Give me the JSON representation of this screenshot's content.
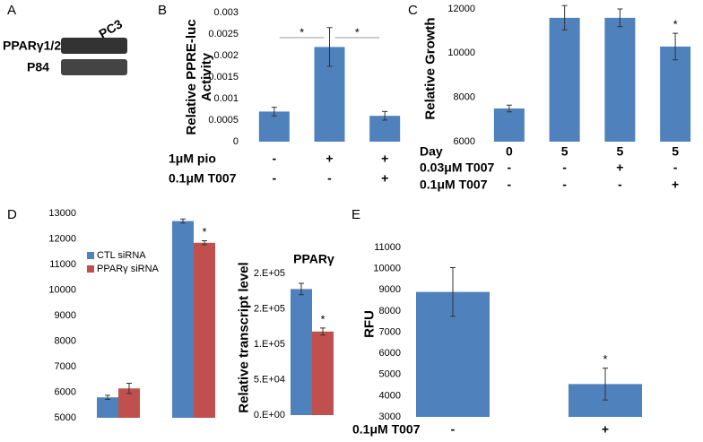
{
  "panel_a": {
    "letter": "A",
    "lane": "PC3",
    "rows": [
      "PPARγ1/2",
      "P84"
    ]
  },
  "chart_data": [
    {
      "type": "bar",
      "panel": "B",
      "ylabel": "Relative PPRE-luc Activity",
      "values": [
        0.0007,
        0.0022,
        0.0006
      ],
      "errors": [
        0.0001,
        0.00045,
        0.0001
      ],
      "color": "#4f81bd",
      "ylim": [
        0,
        0.003
      ],
      "yticks": [
        0,
        0.0005,
        0.001,
        0.0015,
        0.002,
        0.0025,
        0.003
      ],
      "conditions": [
        {
          "label": "1μM pio",
          "values": [
            "-",
            "+",
            "+"
          ]
        },
        {
          "label": "0.1μM T007",
          "values": [
            "-",
            "-",
            "+"
          ]
        }
      ],
      "significance": [
        {
          "from": 0,
          "to": 1,
          "label": "*"
        },
        {
          "from": 1,
          "to": 2,
          "label": "*"
        }
      ]
    },
    {
      "type": "bar",
      "panel": "C",
      "ylabel": "Relative Growth",
      "values": [
        7500,
        11600,
        11600,
        10300
      ],
      "errors": [
        150,
        550,
        400,
        600
      ],
      "color": "#4f81bd",
      "ylim": [
        6000,
        12000
      ],
      "yticks": [
        6000,
        8000,
        10000,
        12000
      ],
      "conditions": [
        {
          "label": "Day",
          "values": [
            "0",
            "5",
            "5",
            "5"
          ]
        },
        {
          "label": "0.03μM T007",
          "values": [
            "-",
            "-",
            "+",
            "-"
          ]
        },
        {
          "label": "0.1μM T007",
          "values": [
            "-",
            "-",
            "-",
            "+"
          ]
        }
      ],
      "annotations": [
        {
          "index": 3,
          "label": "*"
        }
      ]
    },
    {
      "type": "grouped-bar",
      "panel": "D",
      "categories": [
        null,
        null
      ],
      "series": [
        {
          "name": "CTL siRNA",
          "color": "#4f81bd",
          "values": [
            5800,
            12700
          ],
          "errors": [
            80,
            80
          ]
        },
        {
          "name": "PPARγ siRNA",
          "color": "#c0504d",
          "values": [
            6150,
            11850
          ],
          "errors": [
            200,
            80
          ]
        }
      ],
      "ylim": [
        5000,
        13000
      ],
      "yticks": [
        5000,
        6000,
        7000,
        8000,
        9000,
        10000,
        11000,
        12000,
        13000
      ],
      "legend": "upper left",
      "annotations": [
        {
          "series": 1,
          "index": 1,
          "label": "*"
        }
      ]
    },
    {
      "type": "bar",
      "title": "PPARγ",
      "ylabel": "Relative transcript level",
      "categories": [
        null,
        null
      ],
      "values": [
        178000,
        118000
      ],
      "errors": [
        8000,
        5000
      ],
      "colors": [
        "#4f81bd",
        "#c0504d"
      ],
      "ylim": [
        0,
        200000
      ],
      "yticks": [
        {
          "value": 0,
          "label": "0.E+00"
        },
        {
          "value": 50000,
          "label": "5.E+04"
        },
        {
          "value": 100000,
          "label": "1.E+05"
        },
        {
          "value": 150000,
          "label": "2.E+05"
        },
        {
          "value": 200000,
          "label": "2.E+05"
        }
      ],
      "annotations": [
        {
          "index": 1,
          "label": "*"
        }
      ]
    },
    {
      "type": "bar",
      "panel": "E",
      "ylabel": "RFU",
      "values": [
        8900,
        4550
      ],
      "errors": [
        1150,
        750
      ],
      "color": "#4f81bd",
      "ylim": [
        3000,
        11000
      ],
      "yticks": [
        3000,
        4000,
        5000,
        6000,
        7000,
        8000,
        9000,
        10000,
        11000
      ],
      "conditions": [
        {
          "label": "0.1μM T007",
          "values": [
            "-",
            "+"
          ]
        }
      ],
      "annotations": [
        {
          "index": 1,
          "label": "*"
        }
      ]
    }
  ]
}
